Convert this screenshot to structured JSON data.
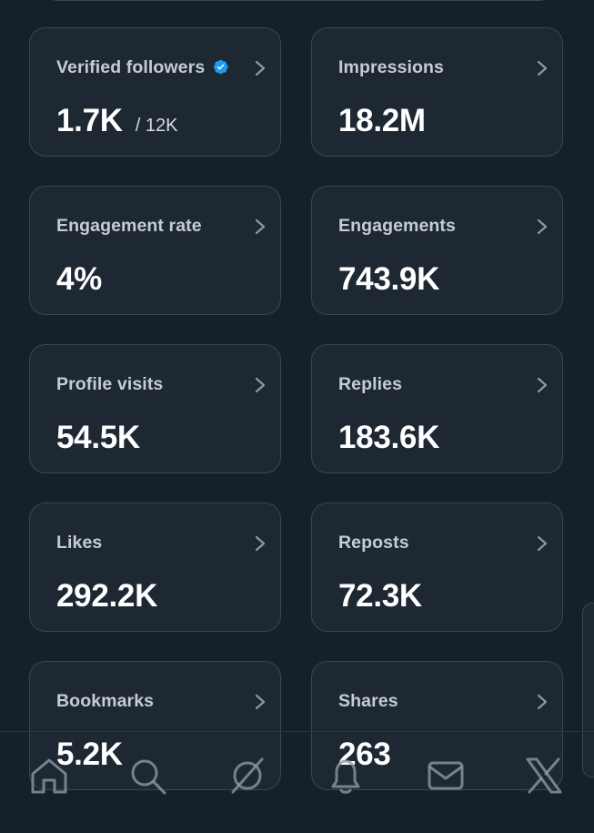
{
  "cards": [
    {
      "label": "Verified followers",
      "value": "1.7K",
      "sub": "/ 12K",
      "verified": true
    },
    {
      "label": "Impressions",
      "value": "18.2M"
    },
    {
      "label": "Engagement rate",
      "value": "4%"
    },
    {
      "label": "Engagements",
      "value": "743.9K"
    },
    {
      "label": "Profile visits",
      "value": "54.5K"
    },
    {
      "label": "Replies",
      "value": "183.6K"
    },
    {
      "label": "Likes",
      "value": "292.2K"
    },
    {
      "label": "Reposts",
      "value": "72.3K"
    },
    {
      "label": "Bookmarks",
      "value": "5.2K"
    },
    {
      "label": "Shares",
      "value": "263"
    }
  ],
  "nav": {
    "items": [
      "home-icon",
      "search-icon",
      "grok-icon",
      "notifications-icon",
      "messages-icon",
      "x-logo-icon"
    ]
  },
  "colors": {
    "background": "#15202b",
    "card": "#1e2833",
    "border": "#3a4654",
    "verified": "#1d9bf0"
  }
}
